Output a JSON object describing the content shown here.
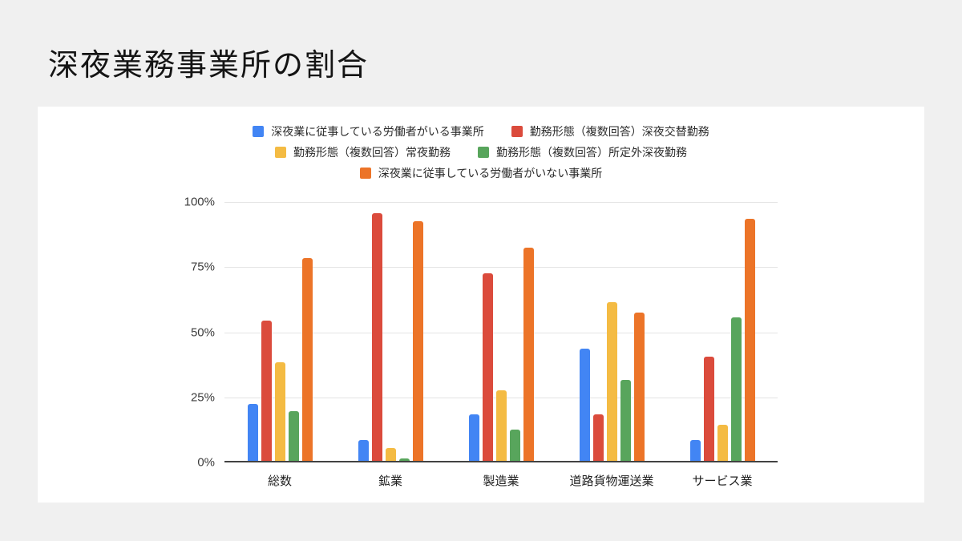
{
  "title": "深夜業務事業所の割合",
  "chart_data": {
    "type": "bar",
    "title": "深夜業務事業所の割合",
    "categories": [
      "総数",
      "鉱業",
      "製造業",
      "道路貨物運送業",
      "サービス業"
    ],
    "series": [
      {
        "name": "深夜業に従事している労働者がいる事業所",
        "color": "#4285F4",
        "values": [
          22,
          8,
          18,
          43,
          8
        ]
      },
      {
        "name": "勤務形態（複数回答）深夜交替勤務",
        "color": "#DB4B3C",
        "values": [
          54,
          95,
          72,
          18,
          40
        ]
      },
      {
        "name": "勤務形態（複数回答）常夜勤務",
        "color": "#F4BB43",
        "values": [
          38,
          5,
          27,
          61,
          14
        ]
      },
      {
        "name": "勤務形態（複数回答）所定外深夜勤務",
        "color": "#58A55C",
        "values": [
          19,
          1,
          12,
          31,
          55
        ]
      },
      {
        "name": "深夜業に従事している労働者がいない事業所",
        "color": "#EC7428",
        "values": [
          78,
          92,
          82,
          57,
          93
        ]
      }
    ],
    "y_ticks": [
      {
        "label": "0%",
        "value": 0
      },
      {
        "label": "25%",
        "value": 25
      },
      {
        "label": "50%",
        "value": 50
      },
      {
        "label": "75%",
        "value": 75
      },
      {
        "label": "100%",
        "value": 100
      }
    ],
    "ylim": [
      0,
      100
    ],
    "grid": true,
    "legend_position": "top",
    "xlabel": "",
    "ylabel": ""
  }
}
